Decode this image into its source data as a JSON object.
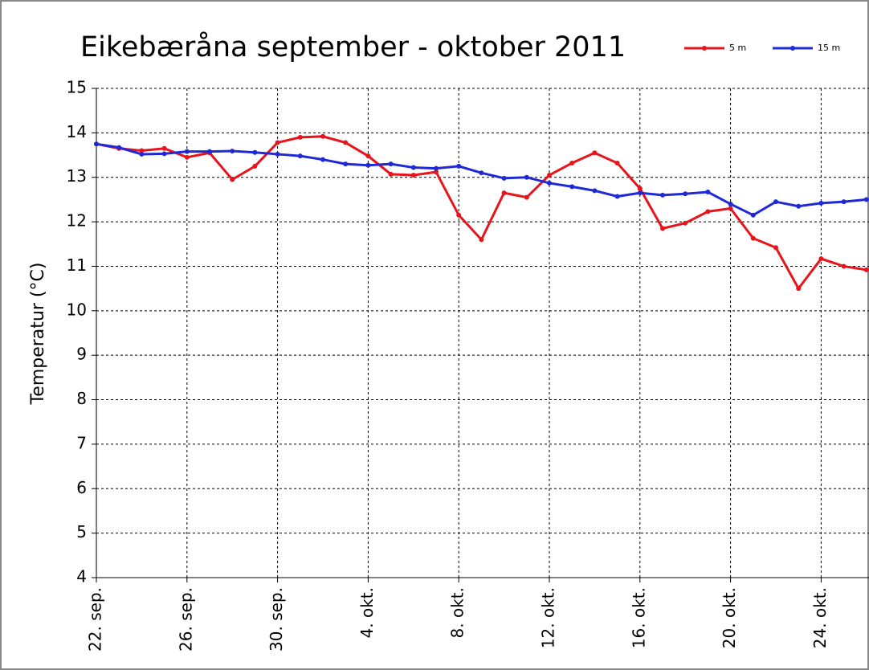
{
  "chart_data": {
    "type": "line",
    "title": "Eikebæråna september - oktober 2011",
    "y_label": "Temperatur (°C)",
    "categories": [
      "22. sep.",
      null,
      null,
      null,
      "26. sep.",
      null,
      null,
      null,
      "30. sep.",
      null,
      null,
      null,
      "4. okt.",
      null,
      null,
      null,
      "8. okt.",
      null,
      null,
      null,
      "12. okt.",
      null,
      null,
      null,
      "16. okt.",
      null,
      null,
      null,
      "20. okt.",
      null,
      null,
      null,
      "24. okt.",
      null,
      null
    ],
    "series": [
      {
        "name": "5 m",
        "color": "#e8141b",
        "values": [
          13.75,
          13.65,
          13.6,
          13.65,
          13.45,
          13.55,
          12.95,
          13.25,
          13.78,
          13.9,
          13.92,
          13.78,
          13.48,
          13.07,
          13.05,
          13.12,
          12.15,
          11.6,
          12.65,
          12.55,
          13.05,
          13.32,
          13.55,
          13.32,
          12.75,
          11.85,
          11.97,
          12.23,
          12.3,
          11.63,
          11.42,
          10.5,
          11.17,
          11.0,
          10.92
        ]
      },
      {
        "name": "15 m",
        "color": "#1f2ad6",
        "values": [
          13.75,
          13.67,
          13.52,
          13.53,
          13.58,
          13.58,
          13.59,
          13.56,
          13.52,
          13.48,
          13.4,
          13.3,
          13.27,
          13.3,
          13.22,
          13.2,
          13.25,
          13.1,
          12.98,
          13.0,
          12.87,
          12.79,
          12.7,
          12.57,
          12.65,
          12.6,
          12.63,
          12.67,
          12.4,
          12.15,
          12.45,
          12.35,
          12.42,
          12.45,
          12.5
        ]
      }
    ],
    "ylim": [
      4,
      15
    ],
    "yticks": [
      4,
      5,
      6,
      7,
      8,
      9,
      10,
      11,
      12,
      13,
      14,
      15
    ],
    "grid": true,
    "legend": "top-right"
  }
}
